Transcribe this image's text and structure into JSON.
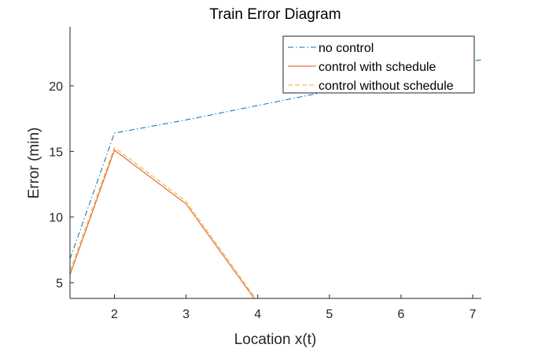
{
  "chart_data": {
    "type": "line",
    "title": "Train Error Diagram",
    "xlabel": "Location x(t)",
    "ylabel": "Error (min)",
    "xlim": [
      1.38,
      7.12
    ],
    "ylim": [
      3.8,
      24.5
    ],
    "xticks": [
      2,
      3,
      4,
      5,
      6,
      7
    ],
    "yticks": [
      5,
      10,
      15,
      20
    ],
    "grid": false,
    "legend_position": "top-right",
    "series": [
      {
        "name": "no control",
        "color": "#0072BD",
        "dash": "dash-dot",
        "x": [
          1.38,
          2,
          3,
          4,
          5,
          6,
          7.12
        ],
        "y": [
          6.8,
          16.4,
          17.4,
          18.5,
          19.6,
          20.7,
          22.0
        ]
      },
      {
        "name": "control with schedule",
        "color": "#D95319",
        "dash": "solid",
        "x": [
          1.38,
          2,
          3,
          3.95
        ],
        "y": [
          5.6,
          15.1,
          11.0,
          3.8
        ]
      },
      {
        "name": "control without schedule",
        "color": "#EDB120",
        "dash": "dashed",
        "x": [
          1.38,
          2,
          3,
          3.97
        ],
        "y": [
          5.9,
          15.3,
          11.2,
          3.8
        ]
      }
    ]
  }
}
